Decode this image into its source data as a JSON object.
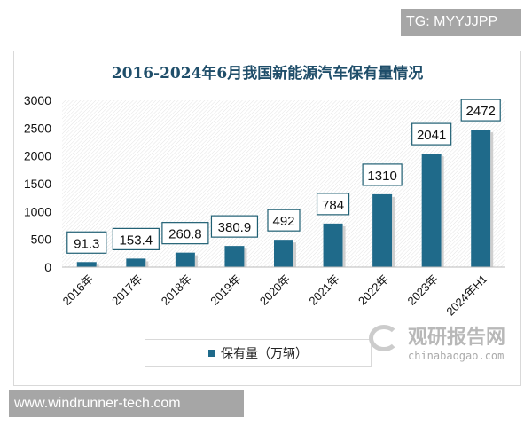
{
  "watermark_top": "TG: MYYJJPP",
  "watermark_bottom": "www.windrunner-tech.com",
  "logo": {
    "name": "观研报告网",
    "url": "chinabaogao.com"
  },
  "chart_data": {
    "type": "bar",
    "title": "2016-2024年6月我国新能源汽车保有量情况",
    "categories": [
      "2016年",
      "2017年",
      "2018年",
      "2019年",
      "2020年",
      "2021年",
      "2022年",
      "2023年",
      "2024年H1"
    ],
    "series": [
      {
        "name": "保有量（万辆）",
        "values": [
          91.3,
          153.4,
          260.8,
          380.9,
          492,
          784,
          1310,
          2041,
          2472
        ],
        "labels": [
          "91.3",
          "153.4",
          "260.8",
          "380.9",
          "492",
          "784",
          "1310",
          "2041",
          "2472"
        ]
      }
    ],
    "ylim": [
      0,
      3000
    ],
    "yticks": [
      "0",
      "500",
      "1000",
      "1500",
      "2000",
      "2500",
      "3000"
    ],
    "legend": "bottom",
    "bar_color": "#1f6a8a",
    "grid": false
  }
}
